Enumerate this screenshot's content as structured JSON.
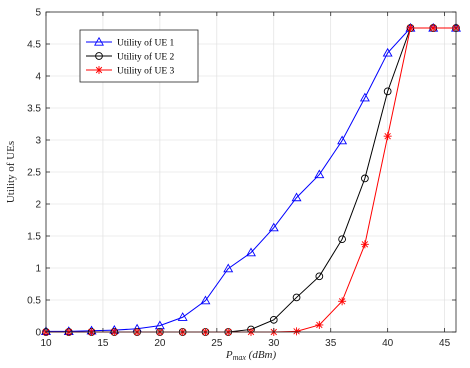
{
  "chart_data": {
    "type": "line",
    "xlabel_main": "P",
    "xlabel_sub": "max",
    "xlabel_unit": " (dBm)",
    "ylabel": "Utility of UEs",
    "xlim": [
      10,
      46
    ],
    "ylim": [
      0,
      5
    ],
    "xticks": [
      10,
      15,
      20,
      25,
      30,
      35,
      40,
      45
    ],
    "yticks": [
      0,
      0.5,
      1,
      1.5,
      2,
      2.5,
      3,
      3.5,
      4,
      4.5,
      5
    ],
    "ytick_labels": [
      "0",
      "0.5",
      "1",
      "1.5",
      "2",
      "2.5",
      "3",
      "3.5",
      "4",
      "4.5",
      "5"
    ],
    "grid": true,
    "legend_position": "top-left",
    "x": [
      10,
      12,
      14,
      16,
      18,
      20,
      22,
      24,
      26,
      28,
      30,
      32,
      34,
      36,
      38,
      40,
      42,
      44,
      46
    ],
    "series": [
      {
        "name": "Utility of UE 1",
        "color": "#0000ff",
        "marker": "triangle",
        "values": [
          0.01,
          0.01,
          0.02,
          0.03,
          0.05,
          0.1,
          0.23,
          0.49,
          0.99,
          1.24,
          1.63,
          2.1,
          2.46,
          2.99,
          3.66,
          4.36,
          4.75,
          4.75,
          4.75
        ]
      },
      {
        "name": "Utility of UE 2",
        "color": "#000000",
        "marker": "circle",
        "values": [
          0,
          0,
          0,
          0,
          0,
          0,
          0,
          0,
          0,
          0.04,
          0.19,
          0.54,
          0.87,
          1.45,
          2.4,
          3.76,
          4.75,
          4.75,
          4.75
        ]
      },
      {
        "name": "Utility of UE 3",
        "color": "#ff0000",
        "marker": "asterisk",
        "values": [
          0,
          0,
          0,
          0,
          0,
          0,
          0,
          0,
          0,
          0,
          0,
          0.01,
          0.11,
          0.48,
          1.37,
          3.06,
          4.75,
          4.75,
          4.75
        ]
      }
    ]
  }
}
